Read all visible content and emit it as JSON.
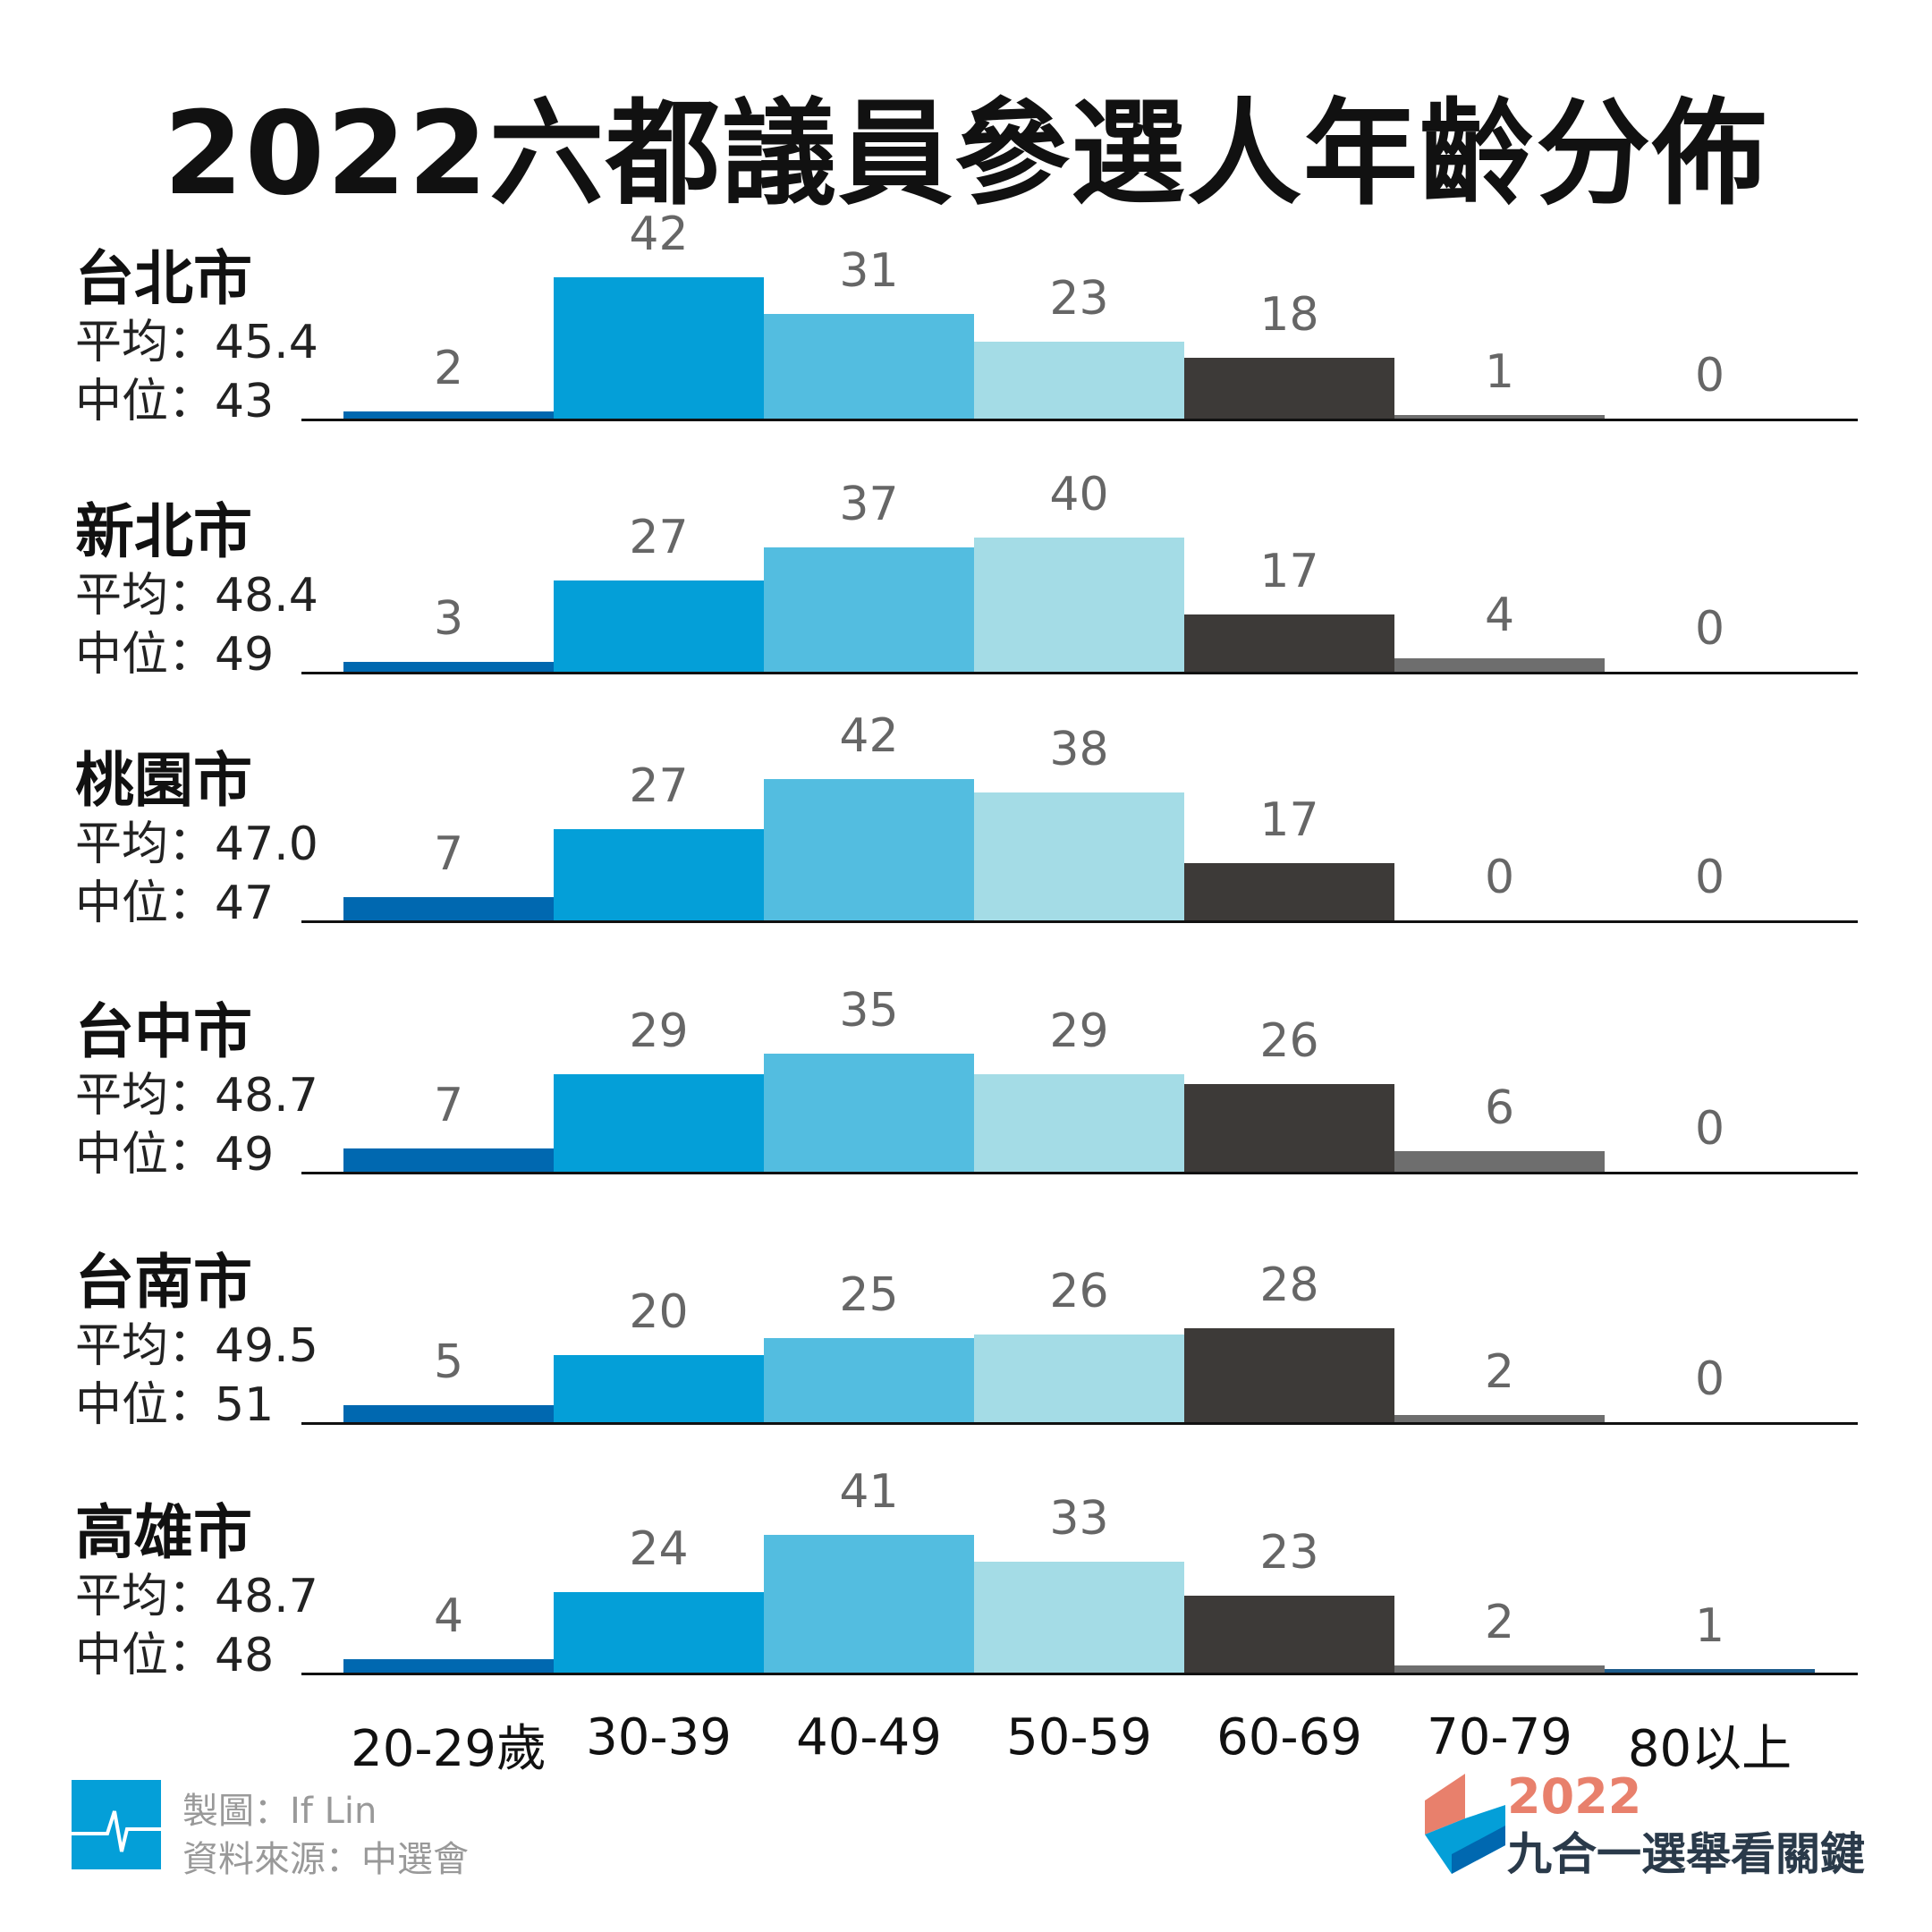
{
  "title": "2022六都議員參選人年齡分佈",
  "chart_data": {
    "type": "bar",
    "title": "2022六都議員參選人年齡分佈",
    "categories": [
      "20-29歲",
      "30-39",
      "40-49",
      "50-59",
      "60-69",
      "70-79",
      "80以上"
    ],
    "colors": [
      "#0068b0",
      "#049fd8",
      "#53bde0",
      "#a4dce6",
      "#3d3a38",
      "#6e6e6e",
      "#1d5c8c"
    ],
    "panels": [
      {
        "city": "台北市",
        "mean_label": "平均：45.4",
        "median_label": "中位：43",
        "values": [
          2,
          42,
          31,
          23,
          18,
          1,
          0
        ]
      },
      {
        "city": "新北市",
        "mean_label": "平均：48.4",
        "median_label": "中位：49",
        "values": [
          3,
          27,
          37,
          40,
          17,
          4,
          0
        ]
      },
      {
        "city": "桃園市",
        "mean_label": "平均：47.0",
        "median_label": "中位：47",
        "values": [
          7,
          27,
          42,
          38,
          17,
          0,
          0
        ]
      },
      {
        "city": "台中市",
        "mean_label": "平均：48.7",
        "median_label": "中位：49",
        "values": [
          7,
          29,
          35,
          29,
          26,
          6,
          0
        ]
      },
      {
        "city": "台南市",
        "mean_label": "平均：49.5",
        "median_label": "中位：51",
        "values": [
          5,
          20,
          25,
          26,
          28,
          2,
          0
        ]
      },
      {
        "city": "高雄市",
        "mean_label": "平均：48.7",
        "median_label": "中位：48",
        "values": [
          4,
          24,
          41,
          33,
          23,
          2,
          1
        ]
      }
    ],
    "grid": false,
    "legend": "none"
  },
  "footer": {
    "credit": "製圖：If Lin",
    "source": "資料來源：中選會",
    "logo_icon": "pulse-line-icon",
    "brand_year": "2022",
    "brand_name": "九合一選舉看關鍵",
    "brand_colors": [
      "#e8806c",
      "#049fd8",
      "#0068b0"
    ]
  }
}
